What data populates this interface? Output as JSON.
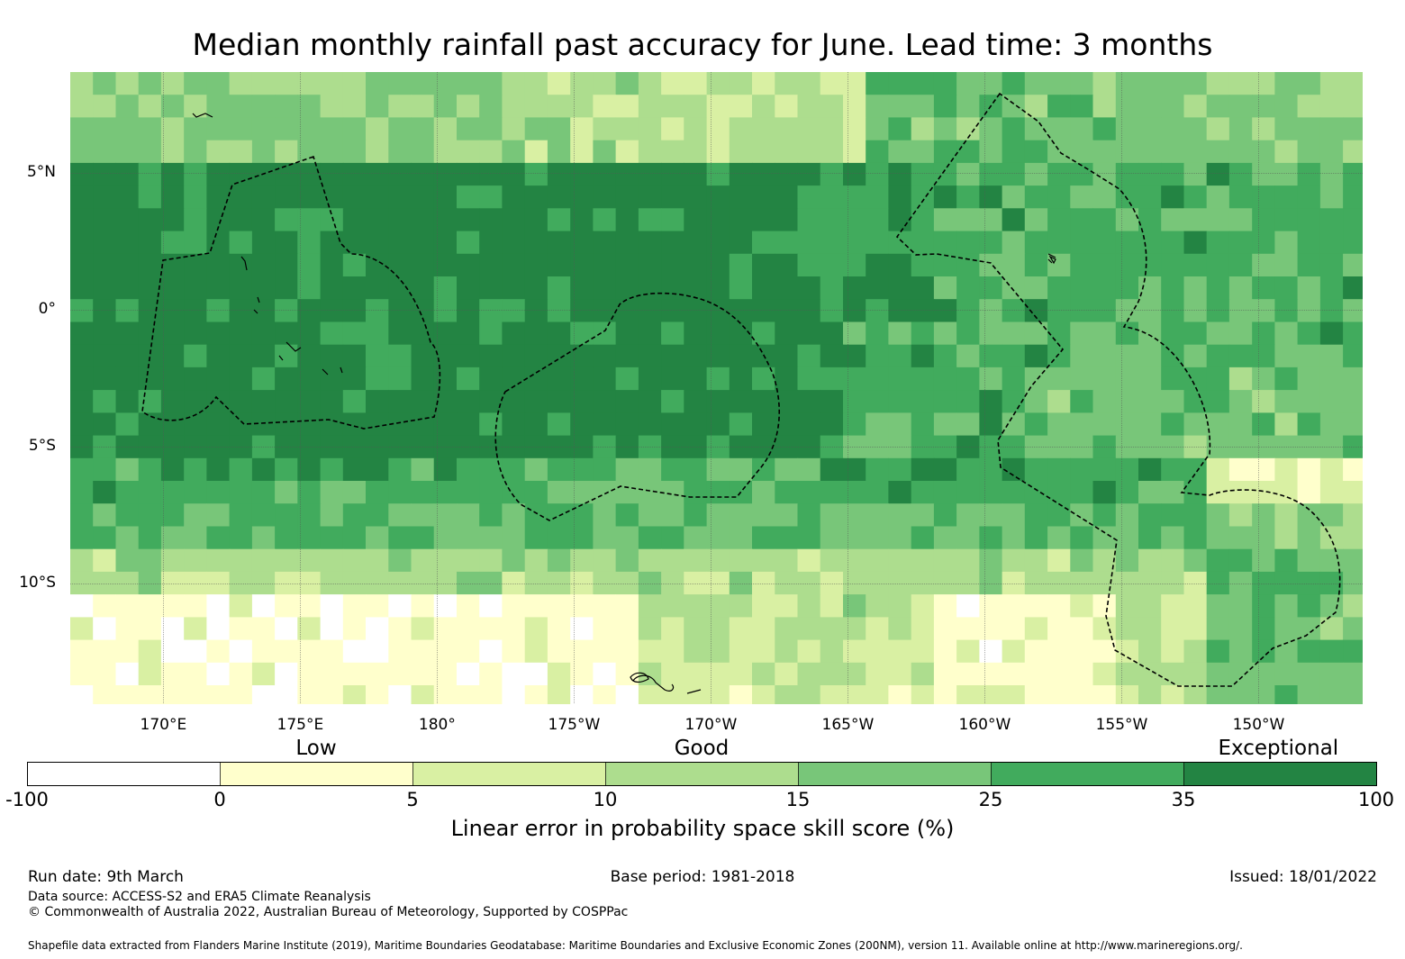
{
  "title": "Median monthly rainfall past accuracy for June. Lead time: 3 months",
  "map": {
    "lon_range": [
      166.6,
      213.8
    ],
    "lat_range": [
      -14.4,
      8.7
    ],
    "x_ticks": [
      {
        "lon": 170,
        "label": "170°E"
      },
      {
        "lon": 175,
        "label": "175°E"
      },
      {
        "lon": 180,
        "label": "180°"
      },
      {
        "lon": 185,
        "label": "175°W"
      },
      {
        "lon": 190,
        "label": "170°W"
      },
      {
        "lon": 195,
        "label": "165°W"
      },
      {
        "lon": 200,
        "label": "160°W"
      },
      {
        "lon": 205,
        "label": "155°W"
      },
      {
        "lon": 210,
        "label": "150°W"
      }
    ],
    "y_ticks": [
      {
        "lat": 5,
        "label": "5°N"
      },
      {
        "lat": 0,
        "label": "0°"
      },
      {
        "lat": -5,
        "label": "5°S"
      },
      {
        "lat": -10,
        "label": "10°S"
      }
    ]
  },
  "colorbar": {
    "category_labels": [
      {
        "text": "Low",
        "at_value": 2.5
      },
      {
        "text": "Good",
        "at_value": 12.5
      },
      {
        "text": "Exceptional",
        "at_value": 67
      }
    ],
    "bins": [
      {
        "from": -100,
        "to": 0,
        "color": "#ffffff"
      },
      {
        "from": 0,
        "to": 5,
        "color": "#ffffcc"
      },
      {
        "from": 5,
        "to": 10,
        "color": "#d9f0a3"
      },
      {
        "from": 10,
        "to": 15,
        "color": "#addd8e"
      },
      {
        "from": 15,
        "to": 25,
        "color": "#78c679"
      },
      {
        "from": 25,
        "to": 35,
        "color": "#41ab5d"
      },
      {
        "from": 35,
        "to": 100,
        "color": "#238443"
      }
    ],
    "tick_labels": [
      "-100",
      "0",
      "5",
      "10",
      "15",
      "25",
      "35",
      "100"
    ],
    "title": "Linear error in probability space skill score (%)"
  },
  "footer": {
    "run_date": "Run date: 9th March",
    "base_period": "Base period: 1981-2018",
    "issued": "Issued: 18/01/2022",
    "data_source": "Data source: ACCESS-S2 and ERA5 Climate Reanalysis",
    "copyright": "© Commonwealth of Australia 2022, Australian Bureau of Meteorology, Supported by COSPPac",
    "shapefile": "Shapefile data extracted from Flanders Marine Institute (2019), Maritime Boundaries Geodatabase: Maritime Boundaries and Exclusive Economic Zones (200NM), version 11. Available online at http://www.marineregions.org/."
  },
  "colors": {
    "c0": "#ffffff",
    "c1": "#ffffcc",
    "c2": "#d9f0a3",
    "c3": "#addd8e",
    "c4": "#78c679",
    "c5": "#41ab5d",
    "c6": "#238443"
  }
}
